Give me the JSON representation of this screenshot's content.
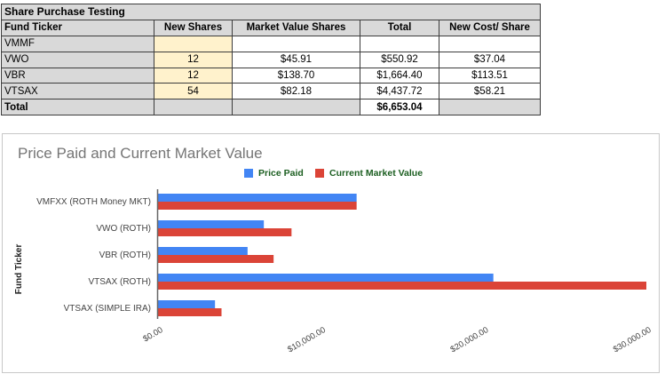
{
  "sheet": {
    "title": "Share Purchase Testing",
    "headers": [
      "Fund Ticker",
      "New Shares",
      "Market Value Shares",
      "Total",
      "New Cost/ Share"
    ],
    "rows": [
      {
        "ticker": "VMMF",
        "new_shares": "",
        "market_value": "",
        "total": "",
        "new_cost": ""
      },
      {
        "ticker": "VWO",
        "new_shares": "12",
        "market_value": "$45.91",
        "total": "$550.92",
        "new_cost": "$37.04"
      },
      {
        "ticker": "VBR",
        "new_shares": "12",
        "market_value": "$138.70",
        "total": "$1,664.40",
        "new_cost": "$113.51"
      },
      {
        "ticker": "VTSAX",
        "new_shares": "54",
        "market_value": "$82.18",
        "total": "$4,437.72",
        "new_cost": "$58.21"
      }
    ],
    "total_row": {
      "label": "Total",
      "total": "$6,653.04"
    }
  },
  "chart_data": {
    "type": "bar",
    "orientation": "horizontal",
    "title": "Price Paid and Current Market Value",
    "ylabel": "Fund Ticker",
    "xlabel": "",
    "categories": [
      "VMFXX (ROTH Money MKT)",
      "VWO (ROTH)",
      "VBR (ROTH)",
      "VTSAX (ROTH)",
      "VTSAX (SIMPLE IRA)"
    ],
    "series": [
      {
        "name": "Price Paid",
        "color": "#4285f4",
        "values": [
          12200,
          6500,
          5500,
          20600,
          3500
        ]
      },
      {
        "name": "Current Market Value",
        "color": "#db4437",
        "values": [
          12200,
          8200,
          7100,
          30000,
          3900
        ]
      }
    ],
    "xlim": [
      0,
      30000
    ],
    "xticks": [
      "$0.00",
      "$10,000.00",
      "$20,000.00",
      "$30,000.00"
    ],
    "legend": "top",
    "grid": false
  }
}
